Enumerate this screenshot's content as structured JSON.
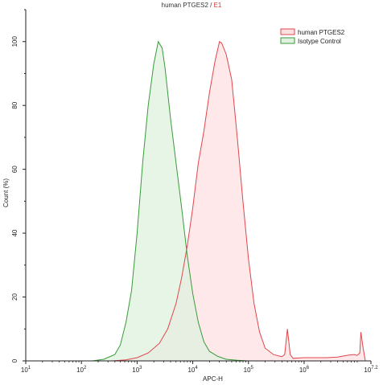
{
  "title": {
    "sample": "human PTGES2",
    "separator": " / ",
    "gate": "E1"
  },
  "chart_data": {
    "type": "area",
    "xlabel": "APC-H",
    "ylabel": "Count (%)",
    "xscale": "log",
    "xlim_log10": [
      1,
      7.2
    ],
    "ylim": [
      0,
      110
    ],
    "x_tick_labels": [
      {
        "base": "10",
        "exp": "1",
        "log": 1
      },
      {
        "base": "10",
        "exp": "2",
        "log": 2
      },
      {
        "base": "10",
        "exp": "3",
        "log": 3
      },
      {
        "base": "10",
        "exp": "4",
        "log": 4
      },
      {
        "base": "10",
        "exp": "5",
        "log": 5
      },
      {
        "base": "10",
        "exp": "6",
        "log": 6
      },
      {
        "base": "10",
        "exp": "7.2",
        "log": 7.2
      }
    ],
    "y_ticks": [
      0,
      20,
      40,
      60,
      80,
      100
    ],
    "y_tick_labels": [
      "0",
      "20",
      "40",
      "60",
      "80",
      "100"
    ],
    "legend_position": "top-right",
    "series": [
      {
        "name": "human PTGES2",
        "color": "#e0464c",
        "fill": "#fde0e1",
        "x_log10": [
          2.55,
          2.8,
          3.0,
          3.2,
          3.4,
          3.55,
          3.7,
          3.8,
          3.9,
          4.0,
          4.05,
          4.1,
          4.2,
          4.3,
          4.4,
          4.48,
          4.52,
          4.6,
          4.65,
          4.7,
          4.8,
          4.9,
          5.0,
          5.1,
          5.2,
          5.3,
          5.45,
          5.6,
          5.65,
          5.7,
          5.75,
          5.8,
          6.0,
          6.2,
          6.4,
          6.6,
          6.8,
          6.9,
          6.95,
          7.0,
          7.02,
          7.06,
          7.1
        ],
        "values": [
          0,
          0.3,
          1.0,
          2.5,
          5.5,
          10,
          18,
          26,
          36,
          48,
          55,
          62,
          72,
          84,
          94,
          100,
          99.5,
          96,
          92,
          88,
          70,
          50,
          32,
          18,
          9,
          4,
          2,
          1.3,
          2,
          10,
          2,
          0.8,
          1.0,
          1.0,
          1.0,
          1.2,
          1.8,
          2.0,
          1.7,
          2.5,
          9,
          4,
          0
        ]
      },
      {
        "name": "Isotype Control",
        "color": "#3a9a3a",
        "fill": "#dff2df",
        "x_log10": [
          2.2,
          2.4,
          2.6,
          2.7,
          2.8,
          2.9,
          3.0,
          3.1,
          3.2,
          3.3,
          3.38,
          3.45,
          3.5,
          3.6,
          3.7,
          3.8,
          3.9,
          4.0,
          4.1,
          4.2,
          4.3,
          4.45,
          4.6,
          4.8,
          5.0
        ],
        "values": [
          0,
          0.5,
          2,
          5,
          12,
          22,
          40,
          62,
          80,
          93,
          100,
          98,
          92,
          76,
          62,
          48,
          33,
          21,
          12,
          6,
          3,
          1.4,
          0.5,
          0.2,
          0
        ]
      }
    ]
  }
}
